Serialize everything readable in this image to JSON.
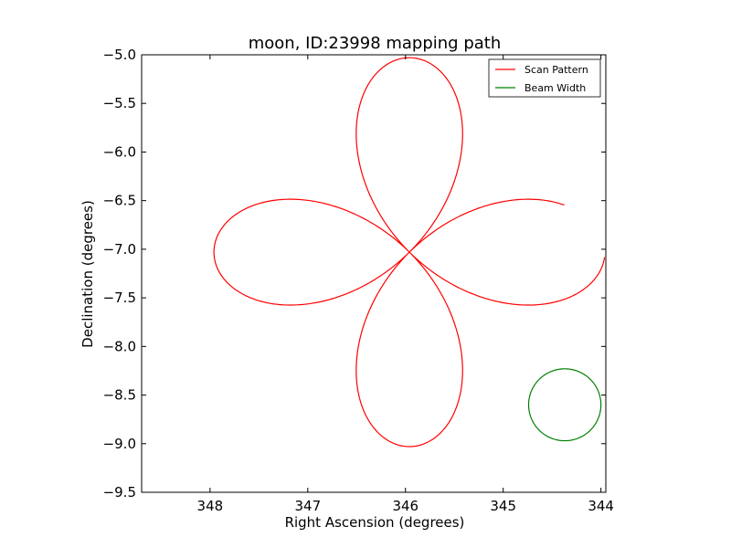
{
  "chart_data": {
    "type": "line",
    "title": "moon, ID:23998 mapping path",
    "xlabel": "Right Ascension (degrees)",
    "ylabel": "Declination (degrees)",
    "xlim": [
      348.7,
      343.95
    ],
    "ylim": [
      -9.5,
      -5.0
    ],
    "xticks": [
      348,
      347,
      346,
      345,
      344
    ],
    "xtick_labels": [
      "348",
      "347",
      "346",
      "345",
      "344"
    ],
    "yticks": [
      -5.0,
      -5.5,
      -6.0,
      -6.5,
      -7.0,
      -7.5,
      -8.0,
      -8.5,
      -9.0,
      -9.5
    ],
    "ytick_labels": [
      "−5.0",
      "−5.5",
      "−6.0",
      "−6.5",
      "−7.0",
      "−7.5",
      "−8.0",
      "−8.5",
      "−9.0",
      "−9.5"
    ],
    "grid": false,
    "legend_position": "top-right",
    "series": [
      {
        "name": "Scan Pattern",
        "color": "#ff0000",
        "curve": "four-petal rose",
        "center": [
          345.96,
          -7.03
        ],
        "radius": 2.0,
        "start_angle_deg": 181.5,
        "end_angle_deg": 523,
        "samples": 700
      },
      {
        "name": "Beam Width",
        "color": "#008000",
        "curve": "circle",
        "center": [
          344.37,
          -8.6
        ],
        "radius": 0.37,
        "samples": 200
      }
    ]
  }
}
